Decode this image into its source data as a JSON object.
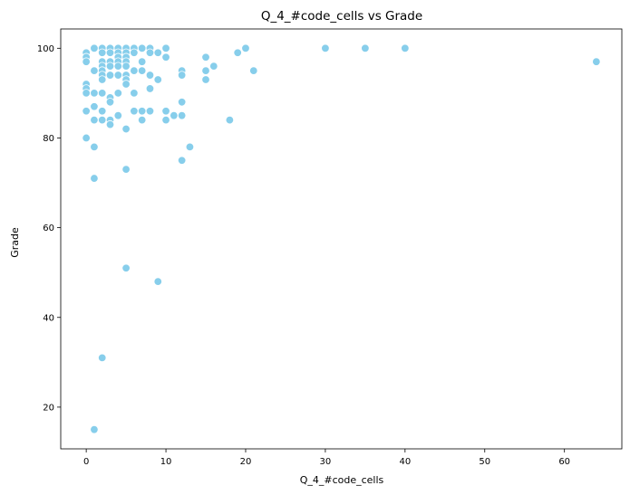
{
  "chart_data": {
    "type": "scatter",
    "title": "Q_4_#code_cells vs Grade",
    "xlabel": "Q_4_#code_cells",
    "ylabel": "Grade",
    "xlim": [
      -3.2,
      67.2
    ],
    "ylim": [
      10.7,
      104.3
    ],
    "xticks": [
      0,
      10,
      20,
      30,
      40,
      50,
      60
    ],
    "yticks": [
      20,
      40,
      60,
      80,
      100
    ],
    "grid": false,
    "legend": "none",
    "colors": {
      "marker": "#87ceeb",
      "marker_edge": "#ffffff",
      "axis": "#000000"
    },
    "points": [
      {
        "x": 0,
        "y": 99
      },
      {
        "x": 0,
        "y": 98
      },
      {
        "x": 0,
        "y": 97
      },
      {
        "x": 0,
        "y": 92
      },
      {
        "x": 0,
        "y": 91
      },
      {
        "x": 0,
        "y": 90
      },
      {
        "x": 0,
        "y": 86
      },
      {
        "x": 0,
        "y": 80
      },
      {
        "x": 1,
        "y": 100
      },
      {
        "x": 1,
        "y": 95
      },
      {
        "x": 1,
        "y": 90
      },
      {
        "x": 1,
        "y": 87
      },
      {
        "x": 1,
        "y": 84
      },
      {
        "x": 1,
        "y": 78
      },
      {
        "x": 1,
        "y": 71
      },
      {
        "x": 1,
        "y": 15
      },
      {
        "x": 2,
        "y": 100
      },
      {
        "x": 2,
        "y": 99
      },
      {
        "x": 2,
        "y": 97
      },
      {
        "x": 2,
        "y": 96
      },
      {
        "x": 2,
        "y": 95
      },
      {
        "x": 2,
        "y": 94
      },
      {
        "x": 2,
        "y": 93
      },
      {
        "x": 2,
        "y": 90
      },
      {
        "x": 2,
        "y": 86
      },
      {
        "x": 2,
        "y": 84
      },
      {
        "x": 2,
        "y": 31
      },
      {
        "x": 3,
        "y": 100
      },
      {
        "x": 3,
        "y": 99
      },
      {
        "x": 3,
        "y": 97
      },
      {
        "x": 3,
        "y": 96
      },
      {
        "x": 3,
        "y": 94
      },
      {
        "x": 3,
        "y": 89
      },
      {
        "x": 3,
        "y": 88
      },
      {
        "x": 3,
        "y": 84
      },
      {
        "x": 3,
        "y": 83
      },
      {
        "x": 4,
        "y": 100
      },
      {
        "x": 4,
        "y": 99
      },
      {
        "x": 4,
        "y": 98
      },
      {
        "x": 4,
        "y": 97
      },
      {
        "x": 4,
        "y": 96
      },
      {
        "x": 4,
        "y": 94
      },
      {
        "x": 4,
        "y": 90
      },
      {
        "x": 4,
        "y": 85
      },
      {
        "x": 5,
        "y": 100
      },
      {
        "x": 5,
        "y": 99
      },
      {
        "x": 5,
        "y": 98
      },
      {
        "x": 5,
        "y": 97
      },
      {
        "x": 5,
        "y": 96
      },
      {
        "x": 5,
        "y": 94
      },
      {
        "x": 5,
        "y": 93
      },
      {
        "x": 5,
        "y": 92
      },
      {
        "x": 5,
        "y": 82
      },
      {
        "x": 5,
        "y": 73
      },
      {
        "x": 5,
        "y": 51
      },
      {
        "x": 6,
        "y": 100
      },
      {
        "x": 6,
        "y": 99
      },
      {
        "x": 6,
        "y": 95
      },
      {
        "x": 6,
        "y": 90
      },
      {
        "x": 6,
        "y": 86
      },
      {
        "x": 7,
        "y": 100
      },
      {
        "x": 7,
        "y": 97
      },
      {
        "x": 7,
        "y": 95
      },
      {
        "x": 7,
        "y": 86
      },
      {
        "x": 7,
        "y": 84
      },
      {
        "x": 8,
        "y": 100
      },
      {
        "x": 8,
        "y": 99
      },
      {
        "x": 8,
        "y": 94
      },
      {
        "x": 8,
        "y": 91
      },
      {
        "x": 8,
        "y": 86
      },
      {
        "x": 9,
        "y": 99
      },
      {
        "x": 9,
        "y": 93
      },
      {
        "x": 9,
        "y": 48
      },
      {
        "x": 10,
        "y": 100
      },
      {
        "x": 10,
        "y": 98
      },
      {
        "x": 10,
        "y": 86
      },
      {
        "x": 10,
        "y": 84
      },
      {
        "x": 11,
        "y": 85
      },
      {
        "x": 12,
        "y": 95
      },
      {
        "x": 12,
        "y": 94
      },
      {
        "x": 12,
        "y": 88
      },
      {
        "x": 12,
        "y": 85
      },
      {
        "x": 12,
        "y": 75
      },
      {
        "x": 13,
        "y": 78
      },
      {
        "x": 15,
        "y": 98
      },
      {
        "x": 15,
        "y": 95
      },
      {
        "x": 15,
        "y": 93
      },
      {
        "x": 16,
        "y": 96
      },
      {
        "x": 18,
        "y": 84
      },
      {
        "x": 19,
        "y": 99
      },
      {
        "x": 20,
        "y": 100
      },
      {
        "x": 21,
        "y": 95
      },
      {
        "x": 30,
        "y": 100
      },
      {
        "x": 35,
        "y": 100
      },
      {
        "x": 40,
        "y": 100
      },
      {
        "x": 64,
        "y": 97
      }
    ]
  }
}
